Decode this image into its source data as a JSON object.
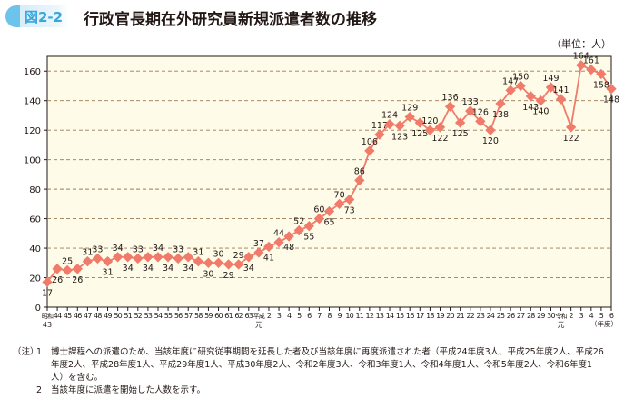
{
  "figure_label": "図2-2",
  "title": "行政官長期在外研究員新規派遣者数の推移",
  "unit_label": "（単位：人）",
  "notes_mark": "（注）",
  "notes": [
    {
      "num": "1",
      "text": "博士課程への派遣のため、当該年度に研究従事期間を延長した者及び当該年度に再度派遣された者（平成24年度3人、平成25年度2人、平成26年度2人、平成28年度1人、平成29年度1人、平成30年度2人、令和2年度3人、令和3年度1人、令和4年度1人、令和5年度2人、令和6年度1人）を含む。"
    },
    {
      "num": "2",
      "text": "当該年度に派遣を開始した人数を示す。"
    }
  ],
  "colors": {
    "line": "#f07b6a",
    "plot_bg": "#fefbe8",
    "grid": "#9b7b55",
    "badge": "#3aa6dc"
  },
  "chart_data": {
    "type": "line",
    "title": "行政官長期在外研究員新規派遣者数の推移",
    "xlabel": "（年度）",
    "ylabel": "（単位：人）",
    "ylim": [
      0,
      170
    ],
    "yticks": [
      0,
      20,
      40,
      60,
      80,
      100,
      120,
      140,
      160
    ],
    "grid": "horizontal dashed",
    "categories": [
      "昭和43",
      "44",
      "45",
      "46",
      "47",
      "48",
      "49",
      "50",
      "51",
      "52",
      "53",
      "54",
      "55",
      "56",
      "57",
      "58",
      "59",
      "60",
      "61",
      "62",
      "63",
      "平成元",
      "2",
      "3",
      "4",
      "5",
      "6",
      "7",
      "8",
      "9",
      "10",
      "11",
      "12",
      "13",
      "14",
      "15",
      "16",
      "17",
      "18",
      "19",
      "20",
      "21",
      "22",
      "23",
      "24",
      "25",
      "26",
      "27",
      "28",
      "29",
      "30",
      "令和元",
      "2",
      "3",
      "4",
      "5",
      "6"
    ],
    "values": [
      17,
      26,
      25,
      26,
      31,
      33,
      31,
      34,
      34,
      33,
      34,
      34,
      34,
      33,
      34,
      31,
      30,
      30,
      29,
      29,
      34,
      37,
      41,
      44,
      48,
      52,
      55,
      60,
      65,
      70,
      73,
      86,
      106,
      117,
      124,
      123,
      129,
      125,
      120,
      122,
      136,
      125,
      133,
      126,
      120,
      138,
      147,
      150,
      143,
      140,
      149,
      141,
      122,
      164,
      161,
      158,
      148
    ],
    "label_positions": [
      "below",
      "below",
      "above",
      "below",
      "above",
      "above",
      "below",
      "above",
      "below",
      "above",
      "below",
      "above",
      "below",
      "above",
      "below",
      "above",
      "below",
      "above",
      "below",
      "above",
      "below",
      "above",
      "below",
      "above",
      "below",
      "above",
      "below",
      "above",
      "below",
      "above",
      "below",
      "above",
      "above",
      "above",
      "above",
      "below",
      "above",
      "below",
      "above",
      "below",
      "above",
      "below",
      "above",
      "above",
      "below",
      "below",
      "above",
      "above",
      "below",
      "below",
      "above",
      "above",
      "below",
      "above",
      "above",
      "below",
      "below"
    ]
  }
}
